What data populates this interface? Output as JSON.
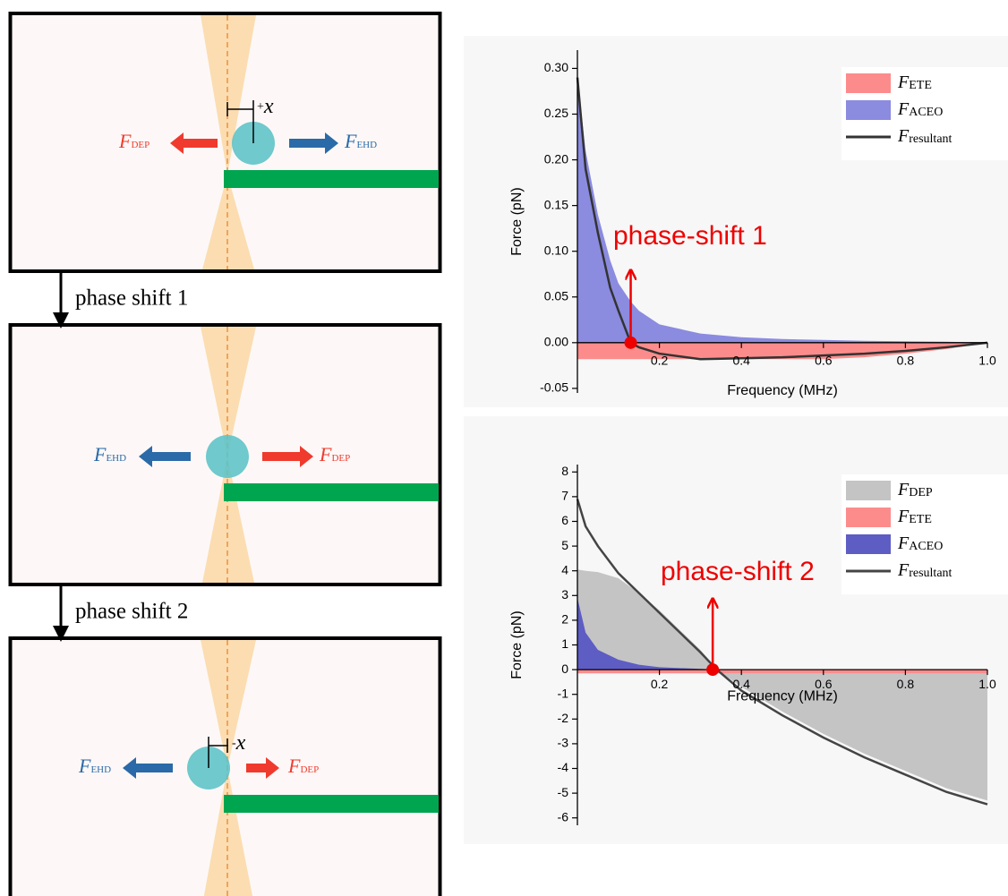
{
  "diagram": {
    "panels": [
      {
        "left": {
          "text": "F",
          "sub": "DEP"
        },
        "right": {
          "text": "F",
          "sub": "EHD"
        },
        "offset": {
          "sign": "+",
          "var": "x"
        }
      },
      {
        "left": {
          "text": "F",
          "sub": "EHD"
        },
        "right": {
          "text": "F",
          "sub": "DEP"
        }
      },
      {
        "left": {
          "text": "F",
          "sub": "EHD"
        },
        "right": {
          "text": "F",
          "sub": "DEP"
        },
        "offset": {
          "sign": "-",
          "var": "x"
        }
      }
    ],
    "steps": [
      "phase shift 1",
      "phase shift 2"
    ]
  },
  "chart_data": [
    {
      "type": "area",
      "xlabel": "Frequency (MHz)",
      "ylabel": "Force (pN)",
      "xlim": [
        0,
        1
      ],
      "ylim": [
        -0.055,
        0.32
      ],
      "xticks": [
        0.2,
        0.4,
        0.6,
        0.8,
        {
          "value": 1,
          "label": "1.0"
        }
      ],
      "yticks": [
        -0.05,
        {
          "value": 0,
          "label": "0.00"
        },
        0.05,
        {
          "value": 0.1,
          "label": "0.10"
        },
        0.15,
        {
          "value": 0.2,
          "label": "0.20"
        },
        0.25,
        {
          "value": 0.3,
          "label": "0.30"
        }
      ],
      "x": [
        0,
        0.02,
        0.05,
        0.08,
        0.1,
        0.13,
        0.15,
        0.2,
        0.3,
        0.4,
        0.5,
        0.6,
        0.7,
        0.8,
        0.9,
        1.0
      ],
      "series": [
        {
          "name": "F",
          "sub": "ETE",
          "kind": "area",
          "color": "#fc8c8c",
          "values": [
            -0.018,
            -0.018,
            -0.018,
            -0.018,
            -0.018,
            -0.018,
            -0.018,
            -0.018,
            -0.018,
            -0.018,
            -0.018,
            -0.018,
            -0.016,
            -0.012,
            -0.007,
            0
          ]
        },
        {
          "name": "F",
          "sub": "ACEO",
          "kind": "area",
          "color": "#8b8be0",
          "values": [
            0.29,
            0.21,
            0.14,
            0.09,
            0.065,
            0.045,
            0.035,
            0.02,
            0.01,
            0.006,
            0.004,
            0.003,
            0.002,
            0.0015,
            0.001,
            0
          ]
        },
        {
          "name": "F",
          "sub": "resultant",
          "kind": "line",
          "color": "#333333",
          "values": [
            0.29,
            0.19,
            0.12,
            0.06,
            0.035,
            0,
            -0.005,
            -0.012,
            -0.018,
            -0.017,
            -0.016,
            -0.014,
            -0.012,
            -0.009,
            -0.005,
            0
          ]
        }
      ],
      "annotation": {
        "text": "phase-shift 1",
        "x": 0.13,
        "y": 0
      }
    },
    {
      "type": "area",
      "xlabel": "Frequency (MHz)",
      "ylabel": "Force (pN)",
      "xlim": [
        0,
        1
      ],
      "ylim": [
        -6.3,
        8.3
      ],
      "xticks": [
        0.2,
        0.4,
        0.6,
        0.8,
        {
          "value": 1,
          "label": "1.0"
        }
      ],
      "yticks": [
        -6,
        -5,
        -4,
        -3,
        -2,
        -1,
        0,
        1,
        2,
        3,
        4,
        5,
        6,
        7,
        8
      ],
      "x": [
        0,
        0.02,
        0.05,
        0.1,
        0.15,
        0.2,
        0.3,
        0.34,
        0.4,
        0.5,
        0.6,
        0.7,
        0.8,
        0.9,
        1.0
      ],
      "series": [
        {
          "name": "F",
          "sub": "DEP",
          "kind": "area",
          "color": "#c4c4c4",
          "values": [
            4.05,
            4.0,
            3.95,
            3.7,
            3.1,
            2.4,
            0.8,
            0,
            -0.7,
            -1.7,
            -2.6,
            -3.4,
            -4.1,
            -4.8,
            -5.3
          ]
        },
        {
          "name": "F",
          "sub": "ETE",
          "kind": "area",
          "color": "#fc8c8c",
          "values": [
            -0.15,
            -0.15,
            -0.15,
            -0.15,
            -0.15,
            -0.15,
            -0.15,
            -0.15,
            -0.15,
            -0.15,
            -0.15,
            -0.15,
            -0.15,
            -0.15,
            -0.15
          ]
        },
        {
          "name": "F",
          "sub": "ACEO",
          "kind": "area",
          "color": "#5d5dc4",
          "values": [
            2.9,
            1.5,
            0.8,
            0.4,
            0.2,
            0.1,
            0.03,
            0,
            0,
            0,
            0,
            0,
            0,
            0,
            0
          ]
        },
        {
          "name": "F",
          "sub": "resultant",
          "kind": "line",
          "color": "#444444",
          "values": [
            6.9,
            5.8,
            5.0,
            3.9,
            3.1,
            2.3,
            0.7,
            0,
            -0.85,
            -1.85,
            -2.75,
            -3.55,
            -4.25,
            -4.95,
            -5.45
          ]
        }
      ],
      "annotation": {
        "text": "phase-shift 2",
        "x": 0.33,
        "y": 0
      }
    }
  ]
}
